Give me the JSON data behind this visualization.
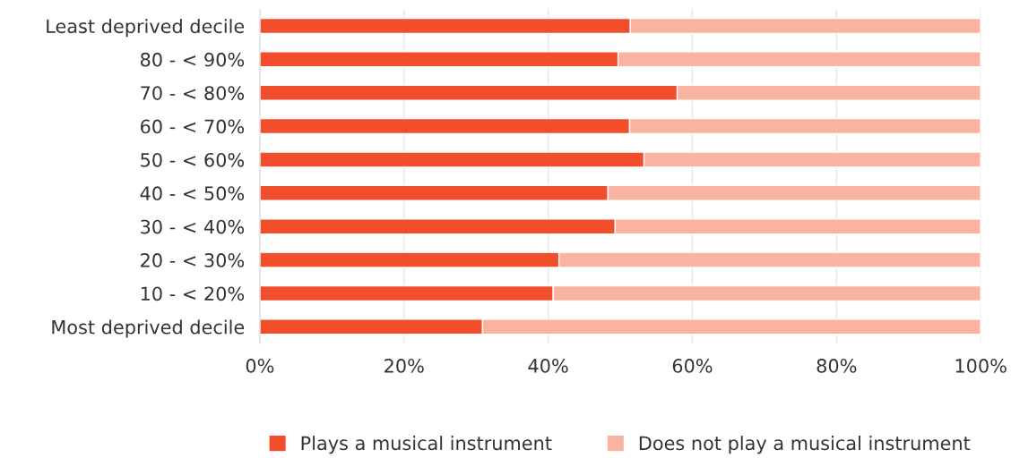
{
  "chart_data": {
    "type": "bar",
    "orientation": "horizontal",
    "stacked": true,
    "categories": [
      "Least deprived decile",
      "80 - < 90%",
      "70 - < 80%",
      "60 - < 70%",
      "50 - < 60%",
      "40 - < 50%",
      "30 - < 40%",
      "20 - < 30%",
      "10 - < 20%",
      "Most deprived decile"
    ],
    "series": [
      {
        "name": "Plays a musical instrument",
        "color": "#f24e2c",
        "values": [
          51.4,
          49.7,
          57.9,
          51.3,
          53.3,
          48.3,
          49.3,
          41.5,
          40.7,
          30.9
        ]
      },
      {
        "name": "Does not play a musical instrument",
        "color": "#f9b3a0",
        "values": [
          48.6,
          50.3,
          42.1,
          48.7,
          46.7,
          51.7,
          50.7,
          58.5,
          59.3,
          69.1
        ]
      }
    ],
    "xlim": [
      0,
      100
    ],
    "xticks": [
      {
        "value": 0,
        "label": "0%"
      },
      {
        "value": 20,
        "label": "20%"
      },
      {
        "value": 40,
        "label": "40%"
      },
      {
        "value": 60,
        "label": "60%"
      },
      {
        "value": 80,
        "label": "80%"
      },
      {
        "value": 100,
        "label": "100%"
      }
    ],
    "grid": "x",
    "legend": "bottom"
  }
}
